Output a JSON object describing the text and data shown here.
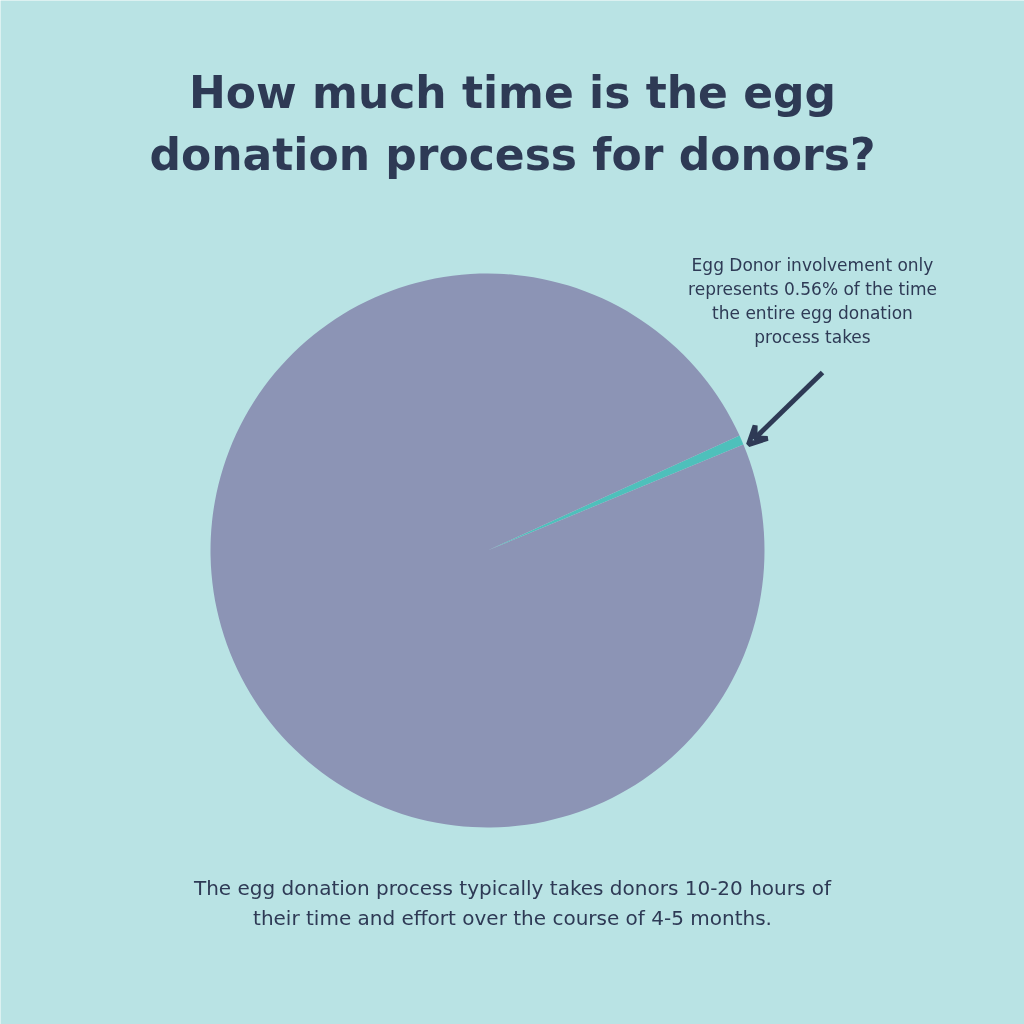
{
  "chart_data": {
    "type": "pie",
    "title": "How much time is the egg donation process for donors?",
    "categories": [
      null,
      null
    ],
    "values": [
      0.56,
      99.44
    ],
    "colors": [
      "#4ec0bb",
      "#8c94b5"
    ],
    "annotations": [
      "Egg Donor involvement only represents 0.56% of the time the entire egg donation process takes",
      "The egg donation process typically takes donors 10-20 hours of their time and effort over the course of 4-5 months."
    ],
    "legend": false
  }
}
